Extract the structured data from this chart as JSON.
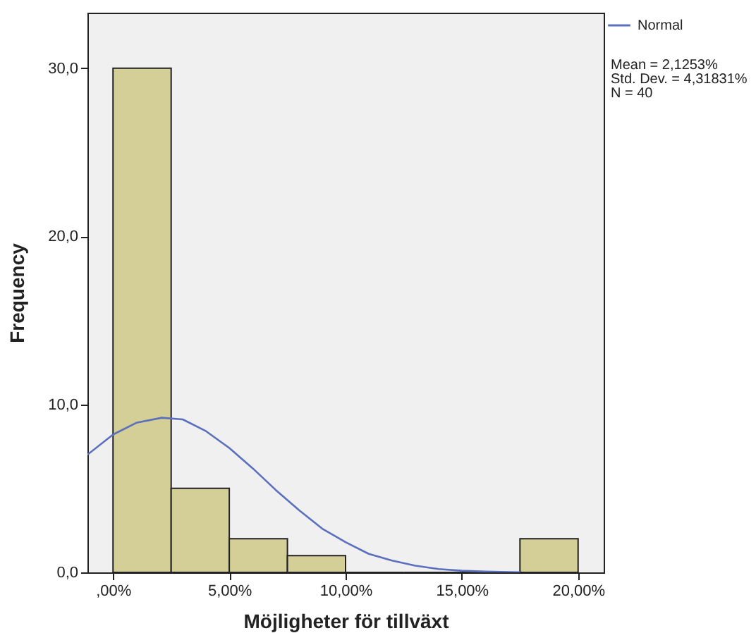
{
  "chart_data": {
    "type": "histogram",
    "xlabel": "Möjligheter för tillväxt",
    "ylabel": "Frequency",
    "bins": [
      0,
      2.5,
      5,
      7.5,
      10,
      12.5,
      15,
      17.5,
      20
    ],
    "values": [
      30,
      5,
      2,
      1,
      0,
      0,
      0,
      2
    ],
    "color": "#d3cf97",
    "series": [
      {
        "name": "Normal",
        "type": "line",
        "color": "#5b6fbd",
        "x": [
          -1.1,
          0,
          1,
          2.1,
          3,
          4,
          5,
          6,
          7,
          8,
          9,
          10,
          11,
          12,
          13,
          14,
          15,
          16,
          17,
          17.5
        ],
        "values": [
          7.0,
          8.2,
          8.9,
          9.2,
          9.1,
          8.4,
          7.4,
          6.2,
          4.9,
          3.7,
          2.6,
          1.8,
          1.1,
          0.7,
          0.4,
          0.2,
          0.1,
          0.05,
          0.02,
          0.01
        ]
      }
    ],
    "xlim": [
      -1.1,
      21.1
    ],
    "ylim": [
      0,
      33.3
    ],
    "xticks": [
      {
        "value": 0,
        "label": ",00%"
      },
      {
        "value": 5,
        "label": "5,00%"
      },
      {
        "value": 10,
        "label": "10,00%"
      },
      {
        "value": 15,
        "label": "15,00%"
      },
      {
        "value": 20,
        "label": "20,00%"
      }
    ],
    "yticks": [
      {
        "value": 0,
        "label": "0,0"
      },
      {
        "value": 10,
        "label": "10,0"
      },
      {
        "value": 20,
        "label": "20,0"
      },
      {
        "value": 30,
        "label": "30,0"
      }
    ],
    "legend": "right",
    "grid": false,
    "annotations": [
      "Mean = 2,1253%",
      "Std. Dev. = 4,31831%",
      "N = 40"
    ]
  }
}
